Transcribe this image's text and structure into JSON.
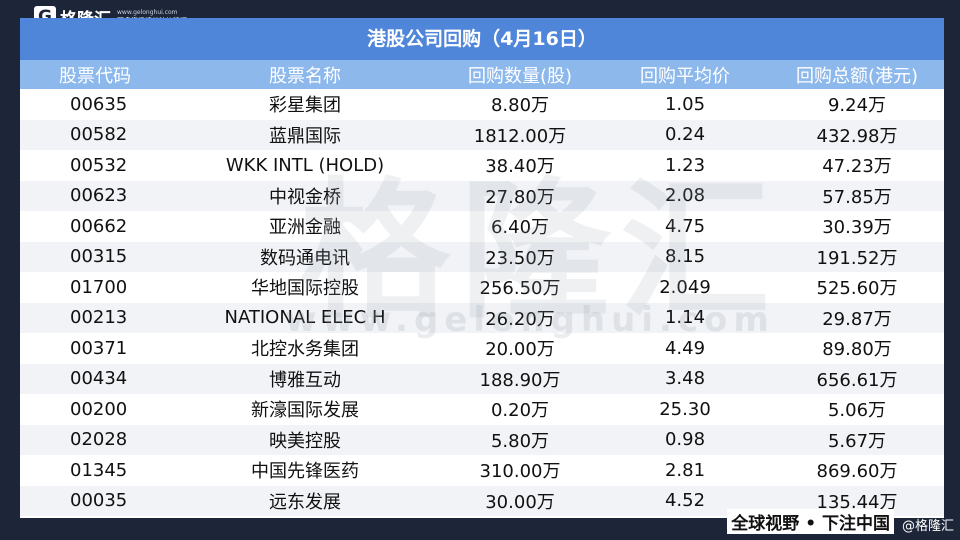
{
  "header": {
    "logo": "G",
    "brand": "格隆汇",
    "site": "www.gelonghui.com",
    "tip": "更多资讯请关注格隆汇App"
  },
  "table": {
    "title": "港股公司回购（4月16日）",
    "columns": [
      "股票代码",
      "股票名称",
      "回购数量(股)",
      "回购平均价",
      "回购总额(港元)"
    ],
    "rows": [
      [
        "00635",
        "彩星集团",
        "8.80万",
        "1.05",
        "9.24万"
      ],
      [
        "00582",
        "蓝鼎国际",
        "1812.00万",
        "0.24",
        "432.98万"
      ],
      [
        "00532",
        "WKK INTL (HOLD)",
        "38.40万",
        "1.23",
        "47.23万"
      ],
      [
        "00623",
        "中视金桥",
        "27.80万",
        "2.08",
        "57.85万"
      ],
      [
        "00662",
        "亚洲金融",
        "6.40万",
        "4.75",
        "30.39万"
      ],
      [
        "00315",
        "数码通电讯",
        "23.50万",
        "8.15",
        "191.52万"
      ],
      [
        "01700",
        "华地国际控股",
        "256.50万",
        "2.049",
        "525.60万"
      ],
      [
        "00213",
        "NATIONAL ELEC H",
        "26.20万",
        "1.14",
        "29.87万"
      ],
      [
        "00371",
        "北控水务集团",
        "20.00万",
        "4.49",
        "89.80万"
      ],
      [
        "00434",
        "博雅互动",
        "188.90万",
        "3.48",
        "656.61万"
      ],
      [
        "00200",
        "新濠国际发展",
        "0.20万",
        "25.30",
        "5.06万"
      ],
      [
        "02028",
        "映美控股",
        "5.80万",
        "0.98",
        "5.67万"
      ],
      [
        "01345",
        "中国先锋医药",
        "310.00万",
        "2.81",
        "869.60万"
      ],
      [
        "00035",
        "远东发展",
        "30.00万",
        "4.52",
        "135.44万"
      ]
    ]
  },
  "footer": {
    "slogan": "全球视野 • 下注中国",
    "handle": "@格隆汇"
  }
}
